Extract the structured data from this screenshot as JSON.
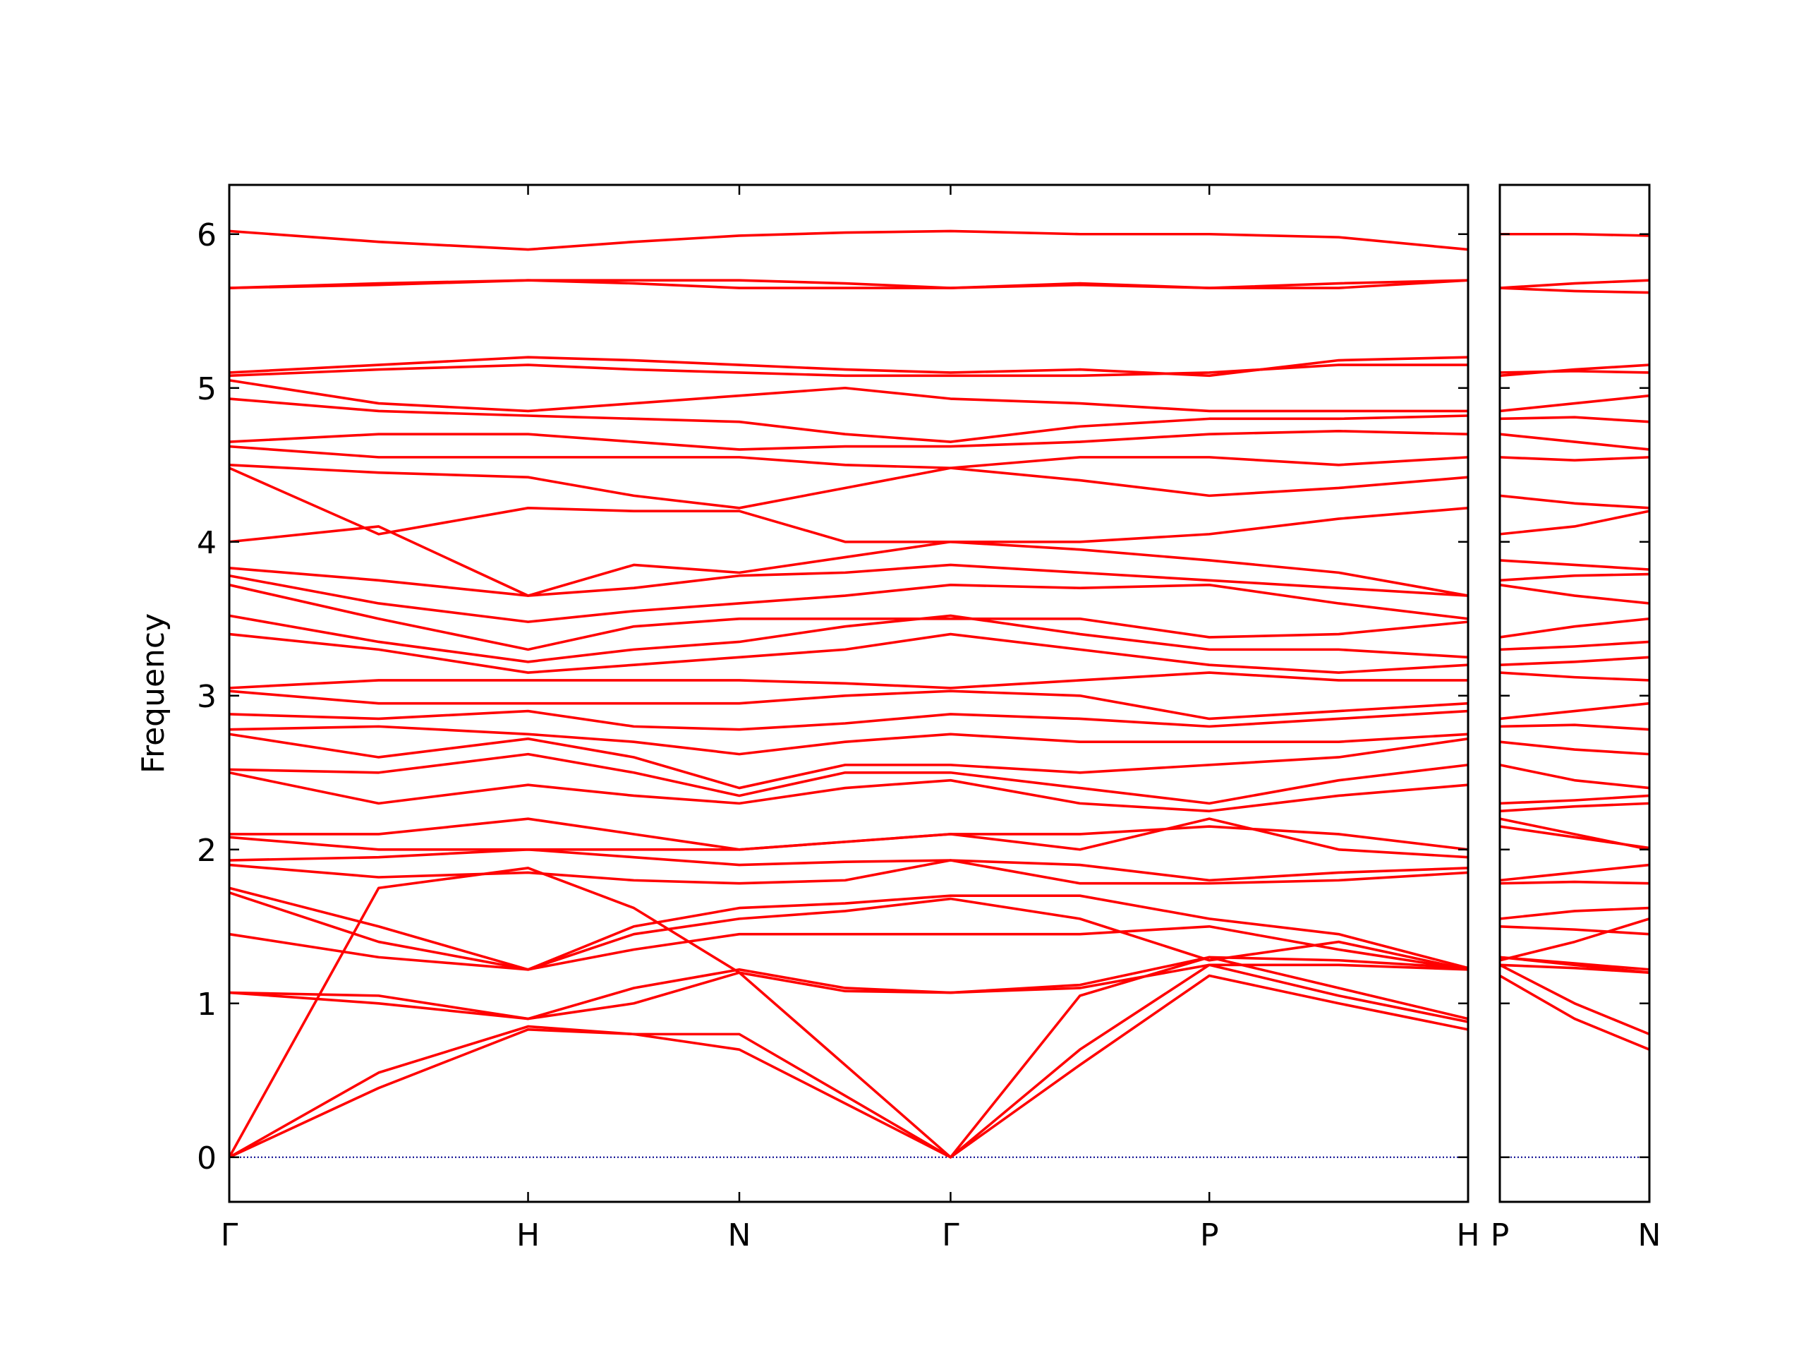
{
  "chart_data": [
    {
      "type": "line",
      "y_label": "Frequency",
      "color": "#ff0000",
      "zero_line": {
        "value": 0,
        "color": "#00008b"
      },
      "x": [
        0,
        0.5,
        1,
        1.354,
        1.707,
        2.061,
        2.414,
        2.847,
        3.28,
        3.713,
        4.146
      ],
      "xlim": [
        0,
        4.146
      ],
      "xticks": [
        {
          "value": 0,
          "label": "Γ"
        },
        {
          "value": 1,
          "label": "H"
        },
        {
          "value": 1.707,
          "label": "N"
        },
        {
          "value": 2.414,
          "label": "Γ"
        },
        {
          "value": 3.28,
          "label": "P"
        },
        {
          "value": 4.146,
          "label": "H"
        }
      ],
      "ylim": [
        -0.29,
        6.32
      ],
      "yticks": [
        0,
        1,
        2,
        3,
        4,
        5,
        6
      ],
      "series": [
        {
          "values": [
            0,
            0.45,
            0.83,
            0.8,
            0.7,
            0.35,
            0,
            0.6,
            1.18,
            1.0,
            0.83
          ]
        },
        {
          "values": [
            0,
            0.55,
            0.85,
            0.8,
            0.8,
            0.4,
            0,
            0.7,
            1.25,
            1.05,
            0.88
          ]
        },
        {
          "values": [
            0,
            1.75,
            1.88,
            1.62,
            1.2,
            0.6,
            0,
            1.05,
            1.3,
            1.1,
            0.9
          ]
        },
        {
          "values": [
            1.07,
            1.05,
            0.9,
            1.0,
            1.2,
            1.08,
            1.07,
            1.1,
            1.25,
            1.25,
            1.22
          ]
        },
        {
          "values": [
            1.07,
            1.0,
            0.9,
            1.1,
            1.22,
            1.1,
            1.07,
            1.12,
            1.3,
            1.28,
            1.23
          ]
        },
        {
          "values": [
            1.45,
            1.3,
            1.22,
            1.35,
            1.45,
            1.45,
            1.45,
            1.45,
            1.5,
            1.35,
            1.22
          ]
        },
        {
          "values": [
            1.72,
            1.4,
            1.22,
            1.45,
            1.55,
            1.6,
            1.68,
            1.55,
            1.28,
            1.4,
            1.22
          ]
        },
        {
          "values": [
            1.75,
            1.5,
            1.22,
            1.5,
            1.62,
            1.65,
            1.7,
            1.7,
            1.55,
            1.45,
            1.23
          ]
        },
        {
          "values": [
            1.9,
            1.82,
            1.85,
            1.8,
            1.78,
            1.8,
            1.93,
            1.78,
            1.78,
            1.8,
            1.85
          ]
        },
        {
          "values": [
            1.93,
            1.95,
            2.0,
            1.95,
            1.9,
            1.92,
            1.93,
            1.9,
            1.8,
            1.85,
            1.88
          ]
        },
        {
          "values": [
            2.08,
            2.0,
            2.0,
            2.0,
            2.0,
            2.05,
            2.1,
            2.0,
            2.2,
            2.0,
            1.95
          ]
        },
        {
          "values": [
            2.1,
            2.1,
            2.2,
            2.1,
            2.0,
            2.05,
            2.1,
            2.1,
            2.15,
            2.1,
            2.0
          ]
        },
        {
          "values": [
            2.5,
            2.3,
            2.42,
            2.35,
            2.3,
            2.4,
            2.45,
            2.3,
            2.25,
            2.35,
            2.42
          ]
        },
        {
          "values": [
            2.52,
            2.5,
            2.62,
            2.5,
            2.35,
            2.5,
            2.5,
            2.4,
            2.3,
            2.45,
            2.55
          ]
        },
        {
          "values": [
            2.75,
            2.6,
            2.72,
            2.6,
            2.4,
            2.55,
            2.55,
            2.5,
            2.55,
            2.6,
            2.72
          ]
        },
        {
          "values": [
            2.78,
            2.8,
            2.75,
            2.7,
            2.62,
            2.7,
            2.75,
            2.7,
            2.7,
            2.7,
            2.75
          ]
        },
        {
          "values": [
            2.88,
            2.85,
            2.9,
            2.8,
            2.78,
            2.82,
            2.88,
            2.85,
            2.8,
            2.85,
            2.9
          ]
        },
        {
          "values": [
            3.03,
            2.95,
            2.95,
            2.95,
            2.95,
            3.0,
            3.03,
            3.0,
            2.85,
            2.9,
            2.95
          ]
        },
        {
          "values": [
            3.05,
            3.1,
            3.1,
            3.1,
            3.1,
            3.08,
            3.05,
            3.1,
            3.15,
            3.1,
            3.1
          ]
        },
        {
          "values": [
            3.4,
            3.3,
            3.15,
            3.2,
            3.25,
            3.3,
            3.4,
            3.3,
            3.2,
            3.15,
            3.2
          ]
        },
        {
          "values": [
            3.52,
            3.35,
            3.22,
            3.3,
            3.35,
            3.45,
            3.52,
            3.4,
            3.3,
            3.3,
            3.25
          ]
        },
        {
          "values": [
            3.72,
            3.5,
            3.3,
            3.45,
            3.5,
            3.5,
            3.5,
            3.5,
            3.38,
            3.4,
            3.48
          ]
        },
        {
          "values": [
            3.78,
            3.6,
            3.48,
            3.55,
            3.6,
            3.65,
            3.72,
            3.7,
            3.72,
            3.6,
            3.5
          ]
        },
        {
          "values": [
            3.83,
            3.75,
            3.65,
            3.7,
            3.78,
            3.8,
            3.85,
            3.8,
            3.75,
            3.7,
            3.65
          ]
        },
        {
          "values": [
            4.0,
            4.1,
            3.65,
            3.85,
            3.8,
            3.9,
            4.0,
            3.95,
            3.88,
            3.8,
            3.65
          ]
        },
        {
          "values": [
            4.48,
            4.05,
            4.22,
            4.2,
            4.2,
            4.0,
            4.0,
            4.0,
            4.05,
            4.15,
            4.22
          ]
        },
        {
          "values": [
            4.5,
            4.45,
            4.42,
            4.3,
            4.22,
            4.35,
            4.48,
            4.4,
            4.3,
            4.35,
            4.42
          ]
        },
        {
          "values": [
            4.62,
            4.55,
            4.55,
            4.55,
            4.55,
            4.5,
            4.48,
            4.55,
            4.55,
            4.5,
            4.55
          ]
        },
        {
          "values": [
            4.65,
            4.7,
            4.7,
            4.65,
            4.6,
            4.62,
            4.62,
            4.65,
            4.7,
            4.72,
            4.7
          ]
        },
        {
          "values": [
            4.93,
            4.85,
            4.82,
            4.8,
            4.78,
            4.7,
            4.65,
            4.75,
            4.8,
            4.8,
            4.82
          ]
        },
        {
          "values": [
            5.05,
            4.9,
            4.85,
            4.9,
            4.95,
            5.0,
            4.93,
            4.9,
            4.85,
            4.85,
            4.85
          ]
        },
        {
          "values": [
            5.08,
            5.12,
            5.15,
            5.12,
            5.1,
            5.08,
            5.08,
            5.08,
            5.1,
            5.15,
            5.15
          ]
        },
        {
          "values": [
            5.1,
            5.15,
            5.2,
            5.18,
            5.15,
            5.12,
            5.1,
            5.12,
            5.08,
            5.18,
            5.2
          ]
        },
        {
          "values": [
            5.65,
            5.67,
            5.7,
            5.68,
            5.65,
            5.65,
            5.65,
            5.67,
            5.65,
            5.68,
            5.7
          ]
        },
        {
          "values": [
            5.65,
            5.68,
            5.7,
            5.7,
            5.7,
            5.68,
            5.65,
            5.68,
            5.65,
            5.65,
            5.7
          ]
        },
        {
          "values": [
            6.02,
            5.95,
            5.9,
            5.95,
            5.99,
            6.01,
            6.02,
            6.0,
            6.0,
            5.98,
            5.9
          ]
        }
      ]
    },
    {
      "type": "line",
      "color": "#ff0000",
      "zero_line": {
        "value": 0,
        "color": "#00008b"
      },
      "x": [
        0,
        0.25,
        0.5
      ],
      "xlim": [
        0,
        0.5
      ],
      "xticks": [
        {
          "value": 0,
          "label": "P"
        },
        {
          "value": 0.5,
          "label": "N"
        }
      ],
      "ylim": [
        -0.29,
        6.32
      ],
      "series": [
        {
          "values": [
            1.18,
            0.9,
            0.7
          ]
        },
        {
          "values": [
            1.25,
            1.0,
            0.8
          ]
        },
        {
          "values": [
            1.3,
            1.25,
            1.2
          ]
        },
        {
          "values": [
            1.25,
            1.23,
            1.2
          ]
        },
        {
          "values": [
            1.3,
            1.26,
            1.22
          ]
        },
        {
          "values": [
            1.5,
            1.48,
            1.45
          ]
        },
        {
          "values": [
            1.28,
            1.4,
            1.55
          ]
        },
        {
          "values": [
            1.55,
            1.6,
            1.62
          ]
        },
        {
          "values": [
            1.78,
            1.79,
            1.78
          ]
        },
        {
          "values": [
            1.8,
            1.85,
            1.9
          ]
        },
        {
          "values": [
            2.2,
            2.1,
            2.0
          ]
        },
        {
          "values": [
            2.15,
            2.08,
            2.01
          ]
        },
        {
          "values": [
            2.25,
            2.28,
            2.3
          ]
        },
        {
          "values": [
            2.3,
            2.32,
            2.35
          ]
        },
        {
          "values": [
            2.55,
            2.45,
            2.4
          ]
        },
        {
          "values": [
            2.7,
            2.65,
            2.62
          ]
        },
        {
          "values": [
            2.8,
            2.81,
            2.78
          ]
        },
        {
          "values": [
            2.85,
            2.9,
            2.95
          ]
        },
        {
          "values": [
            3.15,
            3.12,
            3.1
          ]
        },
        {
          "values": [
            3.2,
            3.22,
            3.25
          ]
        },
        {
          "values": [
            3.3,
            3.32,
            3.35
          ]
        },
        {
          "values": [
            3.38,
            3.45,
            3.5
          ]
        },
        {
          "values": [
            3.72,
            3.65,
            3.6
          ]
        },
        {
          "values": [
            3.75,
            3.78,
            3.79
          ]
        },
        {
          "values": [
            3.88,
            3.85,
            3.82
          ]
        },
        {
          "values": [
            4.05,
            4.1,
            4.2
          ]
        },
        {
          "values": [
            4.3,
            4.25,
            4.22
          ]
        },
        {
          "values": [
            4.55,
            4.53,
            4.55
          ]
        },
        {
          "values": [
            4.7,
            4.65,
            4.6
          ]
        },
        {
          "values": [
            4.8,
            4.81,
            4.78
          ]
        },
        {
          "values": [
            4.85,
            4.9,
            4.95
          ]
        },
        {
          "values": [
            5.1,
            5.11,
            5.1
          ]
        },
        {
          "values": [
            5.08,
            5.12,
            5.15
          ]
        },
        {
          "values": [
            5.65,
            5.63,
            5.62
          ]
        },
        {
          "values": [
            5.65,
            5.68,
            5.7
          ]
        },
        {
          "values": [
            6.0,
            6.0,
            5.99
          ]
        }
      ]
    }
  ]
}
